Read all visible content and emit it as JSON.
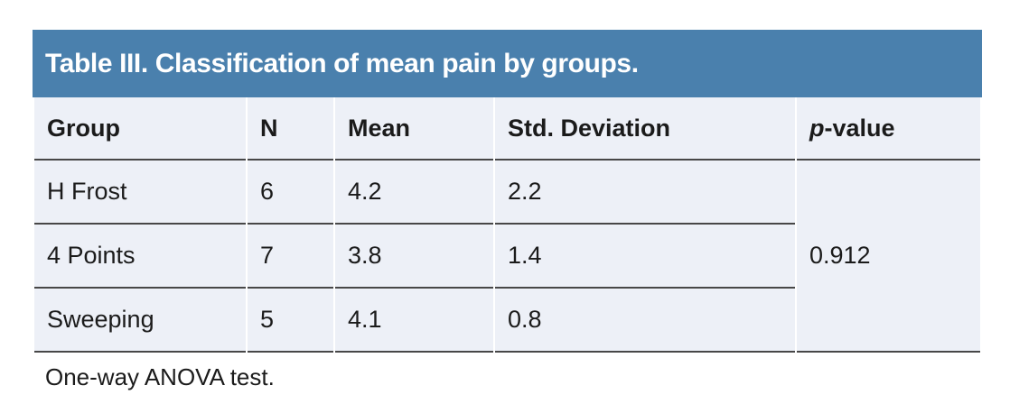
{
  "table": {
    "title": "Table III. Classification of mean pain by groups.",
    "columns": {
      "group": "Group",
      "n": "N",
      "mean": "Mean",
      "std": "Std. Deviation"
    },
    "p_value_header": {
      "italic_part": "p",
      "rest": "-value"
    },
    "rows": [
      {
        "group": "H Frost",
        "n": "6",
        "mean": "4.2",
        "std": "2.2"
      },
      {
        "group": "4 Points",
        "n": "7",
        "mean": "3.8",
        "std": "1.4"
      },
      {
        "group": "Sweeping",
        "n": "5",
        "mean": "4.1",
        "std": "0.8"
      }
    ],
    "p_value": "0.912",
    "footnote": "One-way ANOVA test."
  },
  "chart_data": {
    "type": "table",
    "title": "Table III. Classification of mean pain by groups.",
    "columns": [
      "Group",
      "N",
      "Mean",
      "Std. Deviation",
      "p-value"
    ],
    "rows": [
      [
        "H Frost",
        6,
        4.2,
        2.2,
        0.912
      ],
      [
        "4 Points",
        7,
        3.8,
        1.4,
        0.912
      ],
      [
        "Sweeping",
        5,
        4.1,
        0.8,
        0.912
      ]
    ],
    "note": "One-way ANOVA test."
  },
  "colors": {
    "title_bar_background": "#4a80ad",
    "title_text": "#ffffff",
    "row_background": "#edf0f7",
    "rule_line": "#474747",
    "body_text": "#1b1b1b",
    "page_background": "#ffffff"
  }
}
